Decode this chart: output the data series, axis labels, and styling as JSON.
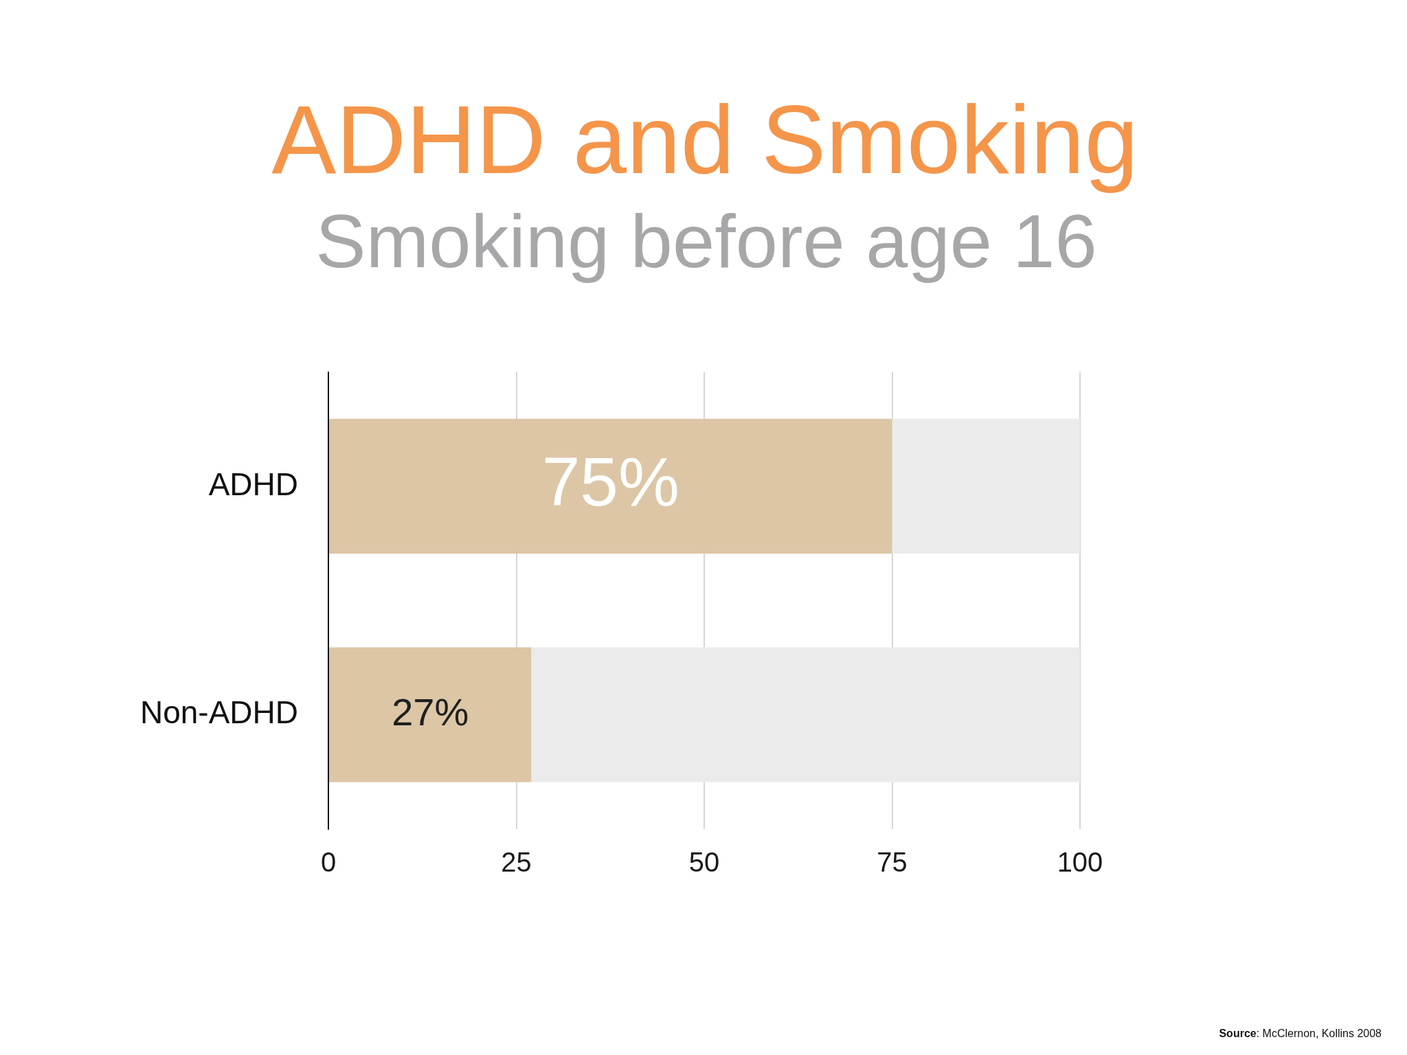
{
  "chart_data": {
    "type": "bar",
    "orientation": "horizontal",
    "stacked": true,
    "title": "ADHD and Smoking",
    "subtitle": "Smoking before age 16",
    "categories": [
      "ADHD",
      "Non-ADHD"
    ],
    "series": [
      {
        "color": "#dcc6a6",
        "values": [
          75,
          27
        ],
        "value_labels": [
          "75%",
          "27%"
        ]
      },
      {
        "color": "#ebebeb",
        "values": [
          25,
          73
        ]
      }
    ],
    "xlim": [
      0,
      100
    ],
    "xticks": [
      0,
      25,
      50,
      75,
      100
    ],
    "grid": "x",
    "legend": false,
    "annotations": [
      "Source: McClernon, Kollins 2008"
    ]
  }
}
